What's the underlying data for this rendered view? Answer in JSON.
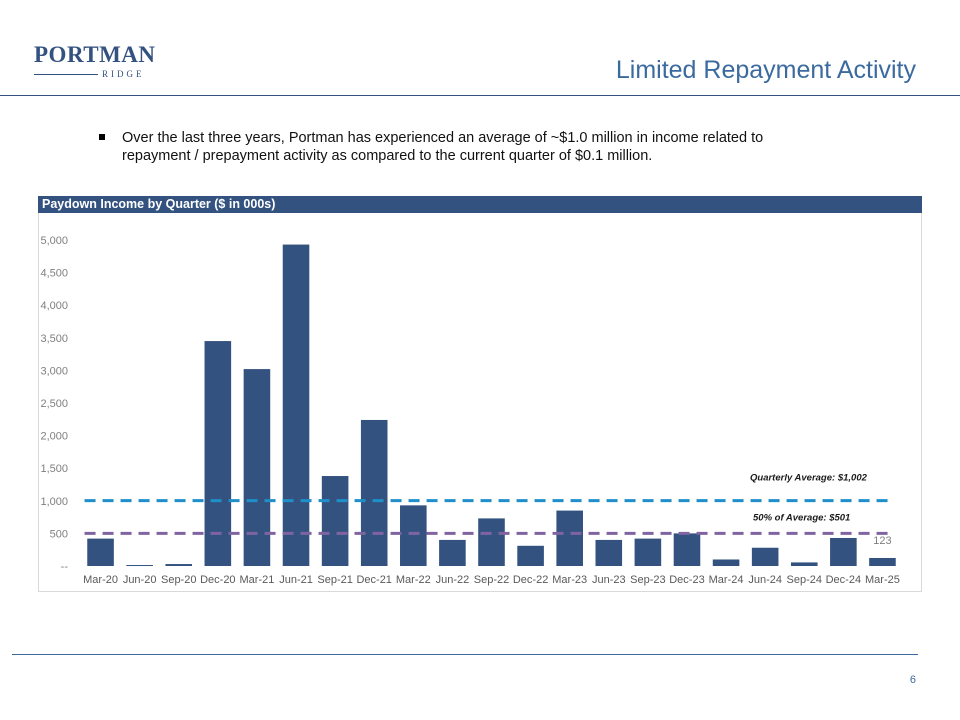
{
  "logo": {
    "top": "PORTMAN",
    "bottom": "RIDGE"
  },
  "title": "Limited Repayment Activity",
  "bullet": "Over the last three years, Portman has experienced an average of ~$1.0 million in income related to repayment / prepayment activity as compared to the current quarter of $0.1 million.",
  "page_number": "6",
  "colors": {
    "bar": "#33527f",
    "avg_line": "#1f8fca",
    "half_line": "#8064a2",
    "title": "#3b6a9f"
  },
  "chart_data": {
    "type": "bar",
    "title": "Paydown Income by Quarter ($ in 000s)",
    "categories": [
      "Mar-20",
      "Jun-20",
      "Sep-20",
      "Dec-20",
      "Mar-21",
      "Jun-21",
      "Sep-21",
      "Dec-21",
      "Mar-22",
      "Jun-22",
      "Sep-22",
      "Dec-22",
      "Mar-23",
      "Jun-23",
      "Sep-23",
      "Dec-23",
      "Mar-24",
      "Jun-24",
      "Sep-24",
      "Dec-24",
      "Mar-25"
    ],
    "values": [
      420,
      15,
      30,
      3450,
      3020,
      4930,
      1380,
      2240,
      930,
      400,
      730,
      310,
      850,
      400,
      420,
      500,
      100,
      280,
      55,
      430,
      123
    ],
    "ylim": [
      0,
      5000
    ],
    "yticks": [
      {
        "value": 0,
        "label": "--"
      },
      {
        "value": 500,
        "label": "500"
      },
      {
        "value": 1000,
        "label": "1,000"
      },
      {
        "value": 1500,
        "label": "1,500"
      },
      {
        "value": 2000,
        "label": "2,000"
      },
      {
        "value": 2500,
        "label": "2,500"
      },
      {
        "value": 3000,
        "label": "3,000"
      },
      {
        "value": 3500,
        "label": "3,500"
      },
      {
        "value": 4000,
        "label": "4,000"
      },
      {
        "value": 4500,
        "label": "4,500"
      },
      {
        "value": 5000,
        "label": "5,000"
      }
    ],
    "reference_lines": [
      {
        "name": "quarterly-average",
        "value": 1002,
        "label": "Quarterly Average: $1,002"
      },
      {
        "name": "half-average",
        "value": 501,
        "label": "50% of Average: $501"
      }
    ],
    "data_labels": [
      {
        "index": 20,
        "label": "123"
      }
    ],
    "xlabel": "",
    "ylabel": ""
  }
}
